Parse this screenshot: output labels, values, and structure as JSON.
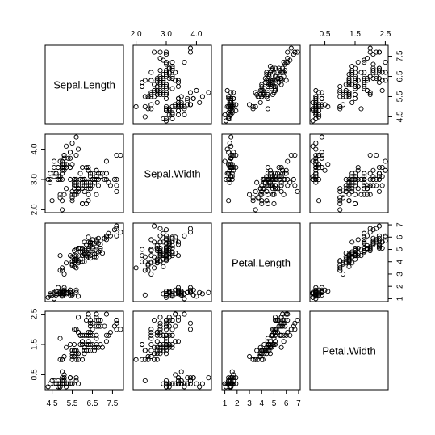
{
  "chart_data": {
    "type": "scatter",
    "kind": "scatterplot-matrix",
    "title": "",
    "variables": [
      "Sepal.Length",
      "Sepal.Width",
      "Petal.Length",
      "Petal.Width"
    ],
    "ranges": [
      [
        4.3,
        7.9
      ],
      [
        2.0,
        4.4
      ],
      [
        1.0,
        6.9
      ],
      [
        0.1,
        2.5
      ]
    ],
    "ticks": [
      [
        4.5,
        5.5,
        6.5,
        7.5
      ],
      [
        2.0,
        3.0,
        4.0
      ],
      [
        1,
        2,
        3,
        4,
        5,
        6,
        7
      ],
      [
        0.5,
        1.5,
        2.5
      ]
    ],
    "tick_labels": [
      [
        "4.5",
        "5.5",
        "6.5",
        "7.5"
      ],
      [
        "2.0",
        "3.0",
        "4.0"
      ],
      [
        "1",
        "2",
        "3",
        "4",
        "5",
        "6",
        "7"
      ],
      [
        "0.5",
        "1.5",
        "2.5"
      ]
    ],
    "observations": [
      [
        5.1,
        3.5,
        1.4,
        0.2
      ],
      [
        4.9,
        3.0,
        1.4,
        0.2
      ],
      [
        4.7,
        3.2,
        1.3,
        0.2
      ],
      [
        4.6,
        3.1,
        1.5,
        0.2
      ],
      [
        5.0,
        3.6,
        1.4,
        0.2
      ],
      [
        5.4,
        3.9,
        1.7,
        0.4
      ],
      [
        4.6,
        3.4,
        1.4,
        0.3
      ],
      [
        5.0,
        3.4,
        1.5,
        0.2
      ],
      [
        4.4,
        2.9,
        1.4,
        0.2
      ],
      [
        4.9,
        3.1,
        1.5,
        0.1
      ],
      [
        5.4,
        3.7,
        1.5,
        0.2
      ],
      [
        4.8,
        3.4,
        1.6,
        0.2
      ],
      [
        4.8,
        3.0,
        1.4,
        0.1
      ],
      [
        4.3,
        3.0,
        1.1,
        0.1
      ],
      [
        5.8,
        4.0,
        1.2,
        0.2
      ],
      [
        5.7,
        4.4,
        1.5,
        0.4
      ],
      [
        5.4,
        3.9,
        1.3,
        0.4
      ],
      [
        5.1,
        3.5,
        1.4,
        0.3
      ],
      [
        5.7,
        3.8,
        1.7,
        0.3
      ],
      [
        5.1,
        3.8,
        1.5,
        0.3
      ],
      [
        5.4,
        3.4,
        1.7,
        0.2
      ],
      [
        5.1,
        3.7,
        1.5,
        0.4
      ],
      [
        4.6,
        3.6,
        1.0,
        0.2
      ],
      [
        5.1,
        3.3,
        1.7,
        0.5
      ],
      [
        4.8,
        3.4,
        1.9,
        0.2
      ],
      [
        5.0,
        3.0,
        1.6,
        0.2
      ],
      [
        5.0,
        3.4,
        1.6,
        0.4
      ],
      [
        5.2,
        3.5,
        1.5,
        0.2
      ],
      [
        5.2,
        3.4,
        1.4,
        0.2
      ],
      [
        4.7,
        3.2,
        1.6,
        0.2
      ],
      [
        4.8,
        3.1,
        1.6,
        0.2
      ],
      [
        5.4,
        3.4,
        1.5,
        0.4
      ],
      [
        5.2,
        4.1,
        1.5,
        0.1
      ],
      [
        5.5,
        4.2,
        1.4,
        0.2
      ],
      [
        4.9,
        3.1,
        1.5,
        0.2
      ],
      [
        5.0,
        3.2,
        1.2,
        0.2
      ],
      [
        5.5,
        3.5,
        1.3,
        0.2
      ],
      [
        4.9,
        3.6,
        1.4,
        0.1
      ],
      [
        4.4,
        3.0,
        1.3,
        0.2
      ],
      [
        5.1,
        3.4,
        1.5,
        0.2
      ],
      [
        5.0,
        3.5,
        1.3,
        0.3
      ],
      [
        4.5,
        2.3,
        1.3,
        0.3
      ],
      [
        4.4,
        3.2,
        1.3,
        0.2
      ],
      [
        5.0,
        3.5,
        1.6,
        0.6
      ],
      [
        5.1,
        3.8,
        1.9,
        0.4
      ],
      [
        4.8,
        3.0,
        1.4,
        0.3
      ],
      [
        5.1,
        3.8,
        1.6,
        0.2
      ],
      [
        4.6,
        3.2,
        1.4,
        0.2
      ],
      [
        5.3,
        3.7,
        1.5,
        0.2
      ],
      [
        5.0,
        3.3,
        1.4,
        0.2
      ],
      [
        7.0,
        3.2,
        4.7,
        1.4
      ],
      [
        6.4,
        3.2,
        4.5,
        1.5
      ],
      [
        6.9,
        3.1,
        4.9,
        1.5
      ],
      [
        5.5,
        2.3,
        4.0,
        1.3
      ],
      [
        6.5,
        2.8,
        4.6,
        1.5
      ],
      [
        5.7,
        2.8,
        4.5,
        1.3
      ],
      [
        6.3,
        3.3,
        4.7,
        1.6
      ],
      [
        4.9,
        2.4,
        3.3,
        1.0
      ],
      [
        6.6,
        2.9,
        4.6,
        1.3
      ],
      [
        5.2,
        2.7,
        3.9,
        1.4
      ],
      [
        5.0,
        2.0,
        3.5,
        1.0
      ],
      [
        5.9,
        3.0,
        4.2,
        1.5
      ],
      [
        6.0,
        2.2,
        4.0,
        1.0
      ],
      [
        6.1,
        2.9,
        4.7,
        1.4
      ],
      [
        5.6,
        2.9,
        3.6,
        1.3
      ],
      [
        6.7,
        3.1,
        4.4,
        1.4
      ],
      [
        5.6,
        3.0,
        4.5,
        1.5
      ],
      [
        5.8,
        2.7,
        4.1,
        1.0
      ],
      [
        6.2,
        2.2,
        4.5,
        1.5
      ],
      [
        5.6,
        2.5,
        3.9,
        1.1
      ],
      [
        5.9,
        3.2,
        4.8,
        1.8
      ],
      [
        6.1,
        2.8,
        4.0,
        1.3
      ],
      [
        6.3,
        2.5,
        4.9,
        1.5
      ],
      [
        6.1,
        2.8,
        4.7,
        1.2
      ],
      [
        6.4,
        2.9,
        4.3,
        1.3
      ],
      [
        6.6,
        3.0,
        4.4,
        1.4
      ],
      [
        6.8,
        2.8,
        4.8,
        1.4
      ],
      [
        6.7,
        3.0,
        5.0,
        1.7
      ],
      [
        6.0,
        2.9,
        4.5,
        1.5
      ],
      [
        5.7,
        2.6,
        3.5,
        1.0
      ],
      [
        5.5,
        2.4,
        3.8,
        1.1
      ],
      [
        5.5,
        2.4,
        3.7,
        1.0
      ],
      [
        5.8,
        2.7,
        3.9,
        1.2
      ],
      [
        6.0,
        2.7,
        5.1,
        1.6
      ],
      [
        5.4,
        3.0,
        4.5,
        1.5
      ],
      [
        6.0,
        3.4,
        4.5,
        1.6
      ],
      [
        6.7,
        3.1,
        4.7,
        1.5
      ],
      [
        6.3,
        2.3,
        4.4,
        1.3
      ],
      [
        5.6,
        3.0,
        4.1,
        1.3
      ],
      [
        5.5,
        2.5,
        4.0,
        1.3
      ],
      [
        5.5,
        2.6,
        4.4,
        1.2
      ],
      [
        6.1,
        3.0,
        4.6,
        1.4
      ],
      [
        5.8,
        2.6,
        4.0,
        1.2
      ],
      [
        5.0,
        2.3,
        3.3,
        1.0
      ],
      [
        5.6,
        2.7,
        4.2,
        1.3
      ],
      [
        5.7,
        3.0,
        4.2,
        1.2
      ],
      [
        5.7,
        2.9,
        4.2,
        1.3
      ],
      [
        6.2,
        2.9,
        4.3,
        1.3
      ],
      [
        5.1,
        2.5,
        3.0,
        1.1
      ],
      [
        5.7,
        2.8,
        4.1,
        1.3
      ],
      [
        6.3,
        3.3,
        6.0,
        2.5
      ],
      [
        5.8,
        2.7,
        5.1,
        1.9
      ],
      [
        7.1,
        3.0,
        5.9,
        2.1
      ],
      [
        6.3,
        2.9,
        5.6,
        1.8
      ],
      [
        6.5,
        3.0,
        5.8,
        2.2
      ],
      [
        7.6,
        3.0,
        6.6,
        2.1
      ],
      [
        4.9,
        2.5,
        4.5,
        1.7
      ],
      [
        7.3,
        2.9,
        6.3,
        1.8
      ],
      [
        6.7,
        2.5,
        5.8,
        1.8
      ],
      [
        7.2,
        3.6,
        6.1,
        2.5
      ],
      [
        6.5,
        3.2,
        5.1,
        2.0
      ],
      [
        6.4,
        2.7,
        5.3,
        1.9
      ],
      [
        6.8,
        3.0,
        5.5,
        2.1
      ],
      [
        5.7,
        2.5,
        5.0,
        2.0
      ],
      [
        5.8,
        2.8,
        5.1,
        2.4
      ],
      [
        6.4,
        3.2,
        5.3,
        2.3
      ],
      [
        6.5,
        3.0,
        5.5,
        1.8
      ],
      [
        7.7,
        3.8,
        6.7,
        2.2
      ],
      [
        7.7,
        2.6,
        6.9,
        2.3
      ],
      [
        6.0,
        2.2,
        5.0,
        1.5
      ],
      [
        6.9,
        3.2,
        5.7,
        2.3
      ],
      [
        5.6,
        2.8,
        4.9,
        2.0
      ],
      [
        7.7,
        2.8,
        6.7,
        2.0
      ],
      [
        6.3,
        2.7,
        4.9,
        1.8
      ],
      [
        6.7,
        3.3,
        5.7,
        2.1
      ],
      [
        7.2,
        3.2,
        6.0,
        1.8
      ],
      [
        6.2,
        2.8,
        4.8,
        1.8
      ],
      [
        6.1,
        3.0,
        4.9,
        1.8
      ],
      [
        6.4,
        2.8,
        5.6,
        2.1
      ],
      [
        7.2,
        3.0,
        5.8,
        1.6
      ],
      [
        7.4,
        2.8,
        6.1,
        1.9
      ],
      [
        7.9,
        3.8,
        6.4,
        2.0
      ],
      [
        6.4,
        2.8,
        5.6,
        2.2
      ],
      [
        6.3,
        2.8,
        5.1,
        1.5
      ],
      [
        6.1,
        2.6,
        5.6,
        1.4
      ],
      [
        7.7,
        3.0,
        6.1,
        2.3
      ],
      [
        6.3,
        3.4,
        5.6,
        2.4
      ],
      [
        6.4,
        3.1,
        5.5,
        1.8
      ],
      [
        6.0,
        3.0,
        4.8,
        1.8
      ],
      [
        6.9,
        3.1,
        5.4,
        2.1
      ],
      [
        6.7,
        3.1,
        5.6,
        2.4
      ],
      [
        6.9,
        3.1,
        5.1,
        2.3
      ],
      [
        5.8,
        2.7,
        5.1,
        1.9
      ],
      [
        6.8,
        3.2,
        5.9,
        2.3
      ],
      [
        6.7,
        3.3,
        5.7,
        2.5
      ],
      [
        6.7,
        3.0,
        5.2,
        2.3
      ],
      [
        6.3,
        2.5,
        5.0,
        1.9
      ],
      [
        6.5,
        3.0,
        5.2,
        2.0
      ],
      [
        6.2,
        3.4,
        5.4,
        2.3
      ],
      [
        5.9,
        3.0,
        5.1,
        1.8
      ]
    ],
    "grid": false,
    "legend": "none"
  }
}
